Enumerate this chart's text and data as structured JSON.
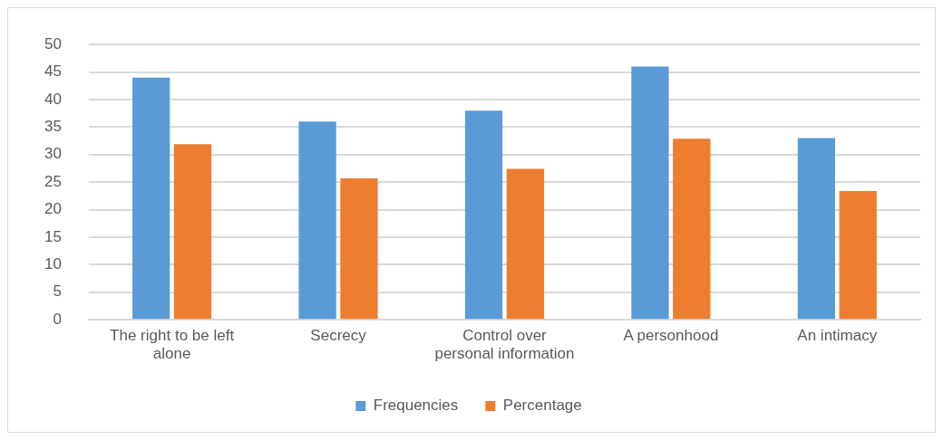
{
  "chart_data": {
    "type": "bar",
    "categories": [
      "The right to be left alone",
      "Secrecy",
      "Control over personal information",
      "A personhood",
      "An intimacy"
    ],
    "series": [
      {
        "name": "Frequencies",
        "color": "#5b9bd5",
        "values": [
          44,
          36,
          38,
          46,
          33
        ]
      },
      {
        "name": "Percentage",
        "color": "#ed7d31",
        "values": [
          31.9,
          25.7,
          27.4,
          32.9,
          23.4
        ]
      }
    ],
    "ylim": [
      0,
      50
    ],
    "yticks": [
      0,
      5,
      10,
      15,
      20,
      25,
      30,
      35,
      40,
      45,
      50
    ],
    "grid": "y",
    "legend": "bottom"
  }
}
